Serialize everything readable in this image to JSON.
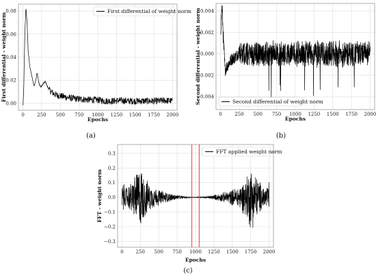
{
  "chart_data": [
    {
      "id": "a",
      "type": "line",
      "caption": "(a)",
      "xlabel": "Epochs",
      "ylabel": "First differential - weight norm",
      "xlim": [
        -60,
        2060
      ],
      "ylim": [
        -0.006,
        0.086
      ],
      "xticks": [
        0,
        250,
        500,
        750,
        1000,
        1250,
        1500,
        1750,
        2000
      ],
      "yticks": [
        0.0,
        0.02,
        0.04,
        0.06,
        0.08
      ],
      "ytick_labels": [
        "0.00",
        "0.02",
        "0.04",
        "0.06",
        "0.08"
      ],
      "grid": true,
      "legend_position": "top-right",
      "series": [
        {
          "name": "First differential of weight norm",
          "color": "#000000",
          "x": [
            0,
            10,
            25,
            40,
            55,
            70,
            90,
            110,
            130,
            150,
            170,
            190,
            210,
            240,
            270,
            300,
            330,
            360,
            400,
            450,
            500,
            600,
            700,
            800,
            900,
            1000,
            1100,
            1200,
            1300,
            1400,
            1500,
            1600,
            1700,
            1800,
            1900,
            2000
          ],
          "y": [
            -0.002,
            0.01,
            0.06,
            0.083,
            0.07,
            0.045,
            0.033,
            0.026,
            0.02,
            0.015,
            0.02,
            0.027,
            0.018,
            0.014,
            0.017,
            0.019,
            0.014,
            0.011,
            0.009,
            0.007,
            0.0065,
            0.005,
            0.004,
            0.0035,
            0.003,
            0.003,
            0.002,
            0.002,
            0.0025,
            0.002,
            0.002,
            0.002,
            0.002,
            0.002,
            0.0025,
            0.002
          ],
          "noise_amplitude": 0.003
        }
      ]
    },
    {
      "id": "b",
      "type": "line",
      "caption": "(b)",
      "xlabel": "Epochs",
      "ylabel": "Second differential - weight norm",
      "xlim": [
        -60,
        2060
      ],
      "ylim": [
        -0.0052,
        0.0047
      ],
      "xticks": [
        0,
        250,
        500,
        750,
        1000,
        1250,
        1500,
        1750,
        2000
      ],
      "yticks": [
        -0.004,
        -0.002,
        0.0,
        0.002,
        0.004
      ],
      "ytick_labels": [
        "−0.004",
        "−0.002",
        "0.000",
        "0.002",
        "0.004"
      ],
      "grid": true,
      "legend_position": "bottom-left",
      "series": [
        {
          "name": "Second differential of weight norm",
          "color": "#000000",
          "x": [
            0,
            20,
            40,
            60,
            100,
            150,
            200,
            250,
            300,
            400,
            500,
            600,
            700,
            800,
            900,
            1000,
            1100,
            1200,
            1300,
            1400,
            1500,
            1600,
            1700,
            1800,
            1900,
            2000
          ],
          "y": [
            0.002,
            0.0045,
            0.001,
            -0.0015,
            -0.001,
            -0.0005,
            -0.0003,
            0.0002,
            0.0,
            0.0,
            0.0,
            0.0,
            0.0,
            0.0,
            0.0,
            0.0,
            0.0,
            0.0,
            0.0,
            0.0,
            0.0,
            0.0,
            0.0,
            0.0,
            0.0,
            0.0
          ],
          "noise_amplitude": 0.0013
        }
      ]
    },
    {
      "id": "c",
      "type": "line",
      "caption": "(c)",
      "xlabel": "Epochs",
      "ylabel": "FFT - weight norm",
      "xlim": [
        -60,
        2060
      ],
      "ylim": [
        -0.34,
        0.36
      ],
      "xticks": [
        0,
        250,
        500,
        750,
        1000,
        1250,
        1500,
        1750,
        2000
      ],
      "yticks": [
        -0.3,
        -0.2,
        -0.1,
        0.0,
        0.1,
        0.2,
        0.3
      ],
      "ytick_labels": [
        "−0.3",
        "−0.2",
        "−0.1",
        "0.0",
        "0.1",
        "0.2",
        "0.3"
      ],
      "grid": true,
      "legend_position": "top-right",
      "vertical_lines": [
        950,
        1050
      ],
      "vertical_line_color": "#e23b3b",
      "series": [
        {
          "name": "FFT applied weight norm",
          "color": "#000000",
          "x": [
            0,
            50,
            100,
            150,
            200,
            250,
            300,
            350,
            400,
            500,
            600,
            700,
            800,
            900,
            1000,
            1100,
            1200,
            1300,
            1400,
            1500,
            1600,
            1650,
            1700,
            1750,
            1800,
            1850,
            1900,
            1950,
            2000
          ],
          "envelope": [
            0.12,
            0.08,
            0.1,
            0.14,
            0.2,
            0.24,
            0.17,
            0.12,
            0.09,
            0.06,
            0.04,
            0.025,
            0.012,
            0.005,
            0.002,
            0.005,
            0.012,
            0.025,
            0.04,
            0.06,
            0.09,
            0.12,
            0.17,
            0.24,
            0.2,
            0.14,
            0.1,
            0.08,
            0.12
          ]
        }
      ]
    }
  ]
}
